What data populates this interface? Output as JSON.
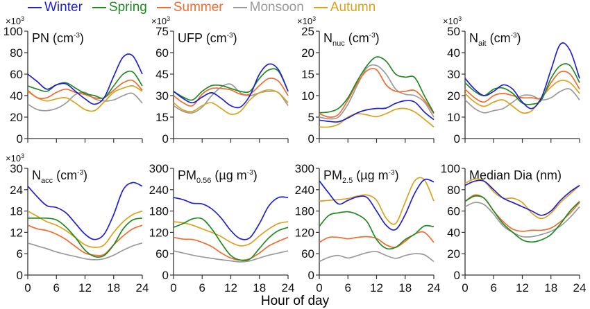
{
  "legend": [
    {
      "name": "Winter",
      "color": "#1f1fd6"
    },
    {
      "name": "Spring",
      "color": "#1f8a1f"
    },
    {
      "name": "Summer",
      "color": "#f26b2e"
    },
    {
      "name": "Monsoon",
      "color": "#9a9a9a"
    },
    {
      "name": "Autumn",
      "color": "#d9a21a"
    }
  ],
  "xlabel": "Hour of day",
  "chart_data": [
    {
      "type": "line",
      "title": "PN (cm-3)",
      "title_main": "PN",
      "title_sub": "",
      "title_unit": " (cm",
      "title_sup": "-3",
      "title_end": ")",
      "multiplier": "×10",
      "multiplier_exp": "3",
      "ylim": [
        0,
        100
      ],
      "yticks": [
        0,
        20,
        40,
        60,
        80,
        100
      ],
      "xticks": [
        0,
        6,
        12,
        18,
        24
      ],
      "show_xticklabels": false,
      "x": [
        0,
        2,
        4,
        6,
        8,
        10,
        12,
        14,
        16,
        18,
        20,
        22,
        24
      ],
      "series": [
        {
          "name": "Winter",
          "values": [
            60,
            53,
            46,
            50,
            51,
            44,
            37,
            32,
            38,
            58,
            76,
            77,
            60
          ]
        },
        {
          "name": "Spring",
          "values": [
            49,
            46,
            44,
            50,
            52,
            47,
            42,
            40,
            38,
            49,
            60,
            62,
            49
          ]
        },
        {
          "name": "Summer",
          "values": [
            45,
            38,
            38,
            43,
            46,
            43,
            41,
            38,
            38,
            45,
            52,
            54,
            45
          ]
        },
        {
          "name": "Monsoon",
          "values": [
            32,
            27,
            26,
            28,
            33,
            41,
            43,
            37,
            35,
            36,
            40,
            42,
            33
          ]
        },
        {
          "name": "Autumn",
          "values": [
            44,
            38,
            35,
            37,
            38,
            33,
            27,
            26,
            34,
            43,
            47,
            49,
            44
          ]
        }
      ]
    },
    {
      "type": "line",
      "title": "UFP (cm-3)",
      "title_main": "UFP",
      "title_sub": "",
      "title_unit": " (cm",
      "title_sup": "-3",
      "title_end": ")",
      "multiplier": "×10",
      "multiplier_exp": "3",
      "ylim": [
        0,
        75
      ],
      "yticks": [
        0,
        15,
        30,
        45,
        60,
        75
      ],
      "xticks": [
        0,
        6,
        12,
        18,
        24
      ],
      "show_xticklabels": false,
      "x": [
        0,
        2,
        4,
        6,
        8,
        10,
        12,
        14,
        16,
        18,
        20,
        22,
        24
      ],
      "series": [
        {
          "name": "Winter",
          "values": [
            33,
            28,
            25,
            29,
            32,
            28,
            23,
            22,
            30,
            45,
            52,
            48,
            33
          ]
        },
        {
          "name": "Spring",
          "values": [
            33,
            29,
            27,
            33,
            37,
            37,
            35,
            33,
            33,
            42,
            48,
            47,
            33
          ]
        },
        {
          "name": "Summer",
          "values": [
            30,
            25,
            23,
            31,
            35,
            35,
            34,
            31,
            31,
            37,
            42,
            40,
            30
          ]
        },
        {
          "name": "Monsoon",
          "values": [
            23,
            19,
            18,
            22,
            30,
            36,
            38,
            32,
            30,
            32,
            33,
            32,
            23
          ]
        },
        {
          "name": "Autumn",
          "values": [
            25,
            20,
            19,
            23,
            25,
            21,
            17,
            19,
            27,
            32,
            34,
            32,
            25
          ]
        }
      ]
    },
    {
      "type": "line",
      "title": "Nnuc (cm-3)",
      "title_main": "N",
      "title_sub": "nuc",
      "title_unit": " (cm",
      "title_sup": "-3",
      "title_end": ")",
      "multiplier": "×10",
      "multiplier_exp": "3",
      "ylim": [
        0,
        25
      ],
      "yticks": [
        0,
        5,
        10,
        15,
        20,
        25
      ],
      "xticks": [
        0,
        6,
        12,
        18,
        24
      ],
      "show_xticklabels": false,
      "x": [
        0,
        2,
        4,
        6,
        8,
        10,
        12,
        14,
        16,
        18,
        20,
        22,
        24
      ],
      "series": [
        {
          "name": "Winter",
          "values": [
            4.3,
            4,
            3.9,
            4.8,
            6,
            6.7,
            7,
            7.1,
            8.2,
            8.8,
            8.5,
            6.2,
            4.4
          ]
        },
        {
          "name": "Spring",
          "values": [
            6,
            6.2,
            7,
            9.5,
            13.5,
            17,
            19,
            18,
            15,
            14.3,
            14.2,
            10,
            6
          ]
        },
        {
          "name": "Summer",
          "values": [
            5.8,
            5,
            5.6,
            9,
            13,
            15.8,
            16,
            12.5,
            11,
            11,
            11.2,
            9,
            5.8
          ]
        },
        {
          "name": "Monsoon",
          "values": [
            5,
            4.6,
            5,
            8,
            12.5,
            16.5,
            17,
            15,
            11.5,
            10.3,
            10,
            8.5,
            5
          ]
        },
        {
          "name": "Autumn",
          "values": [
            2.7,
            2.7,
            3.3,
            5,
            5.8,
            5.5,
            5.1,
            5.8,
            6.8,
            7,
            6.2,
            4.5,
            2.7
          ]
        }
      ]
    },
    {
      "type": "line",
      "title": "Nait (cm-3)",
      "title_main": "N",
      "title_sub": "ait",
      "title_unit": " (cm",
      "title_sup": "-3",
      "title_end": ")",
      "multiplier": "×10",
      "multiplier_exp": "3",
      "ylim": [
        0,
        50
      ],
      "yticks": [
        0,
        10,
        20,
        30,
        40,
        50
      ],
      "xticks": [
        0,
        6,
        12,
        18,
        24
      ],
      "show_xticklabels": false,
      "x": [
        0,
        2,
        4,
        6,
        8,
        10,
        12,
        14,
        16,
        18,
        20,
        22,
        24
      ],
      "series": [
        {
          "name": "Winter",
          "values": [
            28,
            23,
            20,
            22,
            25,
            23,
            17,
            14,
            19,
            32,
            44,
            41,
            28
          ]
        },
        {
          "name": "Spring",
          "values": [
            26,
            22,
            20,
            23,
            23.5,
            21,
            16.5,
            16,
            18,
            28,
            34,
            34,
            26
          ]
        },
        {
          "name": "Summer",
          "values": [
            23,
            19,
            17,
            20,
            21,
            20,
            19,
            19,
            19,
            26,
            31,
            30,
            23
          ]
        },
        {
          "name": "Monsoon",
          "values": [
            18,
            14,
            12,
            13,
            14,
            17,
            20,
            20,
            18,
            19,
            22,
            23,
            18
          ]
        },
        {
          "name": "Autumn",
          "values": [
            21,
            17,
            15,
            17,
            18,
            15,
            12,
            13,
            19,
            24,
            27,
            26,
            21
          ]
        }
      ]
    },
    {
      "type": "line",
      "title": "Nacc (cm-3)",
      "title_main": "N",
      "title_sub": "acc",
      "title_unit": " (cm",
      "title_sup": "-3",
      "title_end": ")",
      "multiplier": "×10",
      "multiplier_exp": "3",
      "ylim": [
        0,
        30
      ],
      "yticks": [
        0,
        6,
        12,
        18,
        24,
        30
      ],
      "xticks": [
        0,
        6,
        12,
        18,
        24
      ],
      "show_xticklabels": true,
      "x": [
        0,
        2,
        4,
        6,
        8,
        10,
        12,
        14,
        16,
        18,
        20,
        22,
        24
      ],
      "series": [
        {
          "name": "Winter",
          "values": [
            25,
            22,
            19.5,
            19,
            17.5,
            14.5,
            11.5,
            10,
            11.5,
            17,
            24,
            26,
            25
          ]
        },
        {
          "name": "Spring",
          "values": [
            16,
            16,
            16,
            15.5,
            13.5,
            10.5,
            7,
            5.2,
            5.5,
            8.5,
            13,
            15.5,
            16
          ]
        },
        {
          "name": "Summer",
          "values": [
            14,
            13,
            12.5,
            11.5,
            10,
            8,
            6.2,
            5.6,
            5.8,
            8.5,
            11,
            13,
            14
          ]
        },
        {
          "name": "Monsoon",
          "values": [
            9,
            8.2,
            7.4,
            6.5,
            5.8,
            5.2,
            4.6,
            4.3,
            4.6,
            5.6,
            7,
            8.2,
            9
          ]
        },
        {
          "name": "Autumn",
          "values": [
            18,
            16.5,
            15,
            14,
            12.5,
            10.5,
            8.5,
            7.8,
            8.5,
            12,
            15,
            17,
            18
          ]
        }
      ]
    },
    {
      "type": "line",
      "title": "PM0.56 (µg m-3)",
      "title_main": "PM",
      "title_sub": "0.56",
      "title_unit": " (µg m",
      "title_sup": "-3",
      "title_end": ")",
      "multiplier": "",
      "multiplier_exp": "",
      "ylim": [
        0,
        300
      ],
      "yticks": [
        0,
        60,
        120,
        180,
        240,
        300
      ],
      "xticks": [
        0,
        6,
        12,
        18,
        24
      ],
      "show_xticklabels": true,
      "x": [
        0,
        2,
        4,
        6,
        8,
        10,
        12,
        14,
        16,
        18,
        20,
        22,
        24
      ],
      "series": [
        {
          "name": "Winter",
          "values": [
            218,
            212,
            202,
            200,
            186,
            160,
            125,
            102,
            105,
            145,
            195,
            218,
            218
          ]
        },
        {
          "name": "Spring",
          "values": [
            134,
            145,
            158,
            158,
            130,
            90,
            55,
            42,
            45,
            75,
            105,
            125,
            134
          ]
        },
        {
          "name": "Summer",
          "values": [
            106,
            101,
            100,
            92,
            80,
            62,
            48,
            42,
            46,
            62,
            82,
            95,
            106
          ]
        },
        {
          "name": "Monsoon",
          "values": [
            68,
            62,
            56,
            51,
            47,
            43,
            40,
            37,
            40,
            48,
            56,
            62,
            68
          ]
        },
        {
          "name": "Autumn",
          "values": [
            150,
            147,
            140,
            130,
            120,
            108,
            92,
            82,
            88,
            110,
            130,
            145,
            150
          ]
        }
      ]
    },
    {
      "type": "line",
      "title": "PM2.5 (µg m-3)",
      "title_main": "PM",
      "title_sub": "2.5",
      "title_unit": " (µg m",
      "title_sup": "-3",
      "title_end": ")",
      "multiplier": "",
      "multiplier_exp": "",
      "ylim": [
        0,
        300
      ],
      "yticks": [
        0,
        60,
        120,
        180,
        240,
        300
      ],
      "xticks": [
        0,
        6,
        12,
        18,
        24
      ],
      "show_xticklabels": true,
      "x": [
        0,
        2,
        4,
        6,
        8,
        10,
        12,
        14,
        16,
        18,
        20,
        22,
        24
      ],
      "series": [
        {
          "name": "Winter",
          "values": [
            265,
            230,
            200,
            210,
            220,
            218,
            180,
            140,
            128,
            170,
            230,
            268,
            262
          ]
        },
        {
          "name": "Spring",
          "values": [
            137,
            168,
            175,
            178,
            170,
            150,
            100,
            75,
            78,
            100,
            115,
            138,
            136
          ]
        },
        {
          "name": "Summer",
          "values": [
            92,
            106,
            106,
            102,
            106,
            108,
            103,
            85,
            78,
            95,
            115,
            120,
            92
          ]
        },
        {
          "name": "Monsoon",
          "values": [
            38,
            50,
            55,
            48,
            55,
            63,
            66,
            55,
            47,
            55,
            60,
            57,
            38
          ]
        },
        {
          "name": "Autumn",
          "values": [
            208,
            210,
            212,
            215,
            222,
            225,
            210,
            160,
            145,
            205,
            265,
            268,
            208
          ]
        }
      ]
    },
    {
      "type": "line",
      "title": "Median Dia (nm)",
      "title_main": "Median Dia",
      "title_sub": "",
      "title_unit": " (nm",
      "title_sup": "",
      "title_end": ")",
      "multiplier": "",
      "multiplier_exp": "",
      "ylim": [
        0,
        100
      ],
      "yticks": [
        0,
        20,
        40,
        60,
        80,
        100
      ],
      "xticks": [
        0,
        6,
        12,
        18,
        24
      ],
      "show_xticklabels": true,
      "x": [
        0,
        2,
        4,
        6,
        8,
        10,
        12,
        14,
        16,
        18,
        20,
        22,
        24
      ],
      "series": [
        {
          "name": "Winter",
          "values": [
            84,
            88,
            88,
            80,
            72,
            68,
            64,
            60,
            56,
            60,
            70,
            78,
            84
          ]
        },
        {
          "name": "Spring",
          "values": [
            69,
            74,
            72,
            60,
            48,
            40,
            33,
            31,
            33,
            38,
            48,
            60,
            69
          ]
        },
        {
          "name": "Summer",
          "values": [
            69,
            75,
            72,
            60,
            50,
            43,
            41,
            42,
            42,
            44,
            50,
            58,
            68
          ]
        },
        {
          "name": "Monsoon",
          "values": [
            64,
            68,
            66,
            57,
            46,
            40,
            36,
            36,
            38,
            41,
            46,
            54,
            64
          ]
        },
        {
          "name": "Autumn",
          "values": [
            86,
            90,
            88,
            78,
            72,
            72,
            68,
            58,
            53,
            58,
            68,
            76,
            84
          ]
        }
      ]
    }
  ]
}
